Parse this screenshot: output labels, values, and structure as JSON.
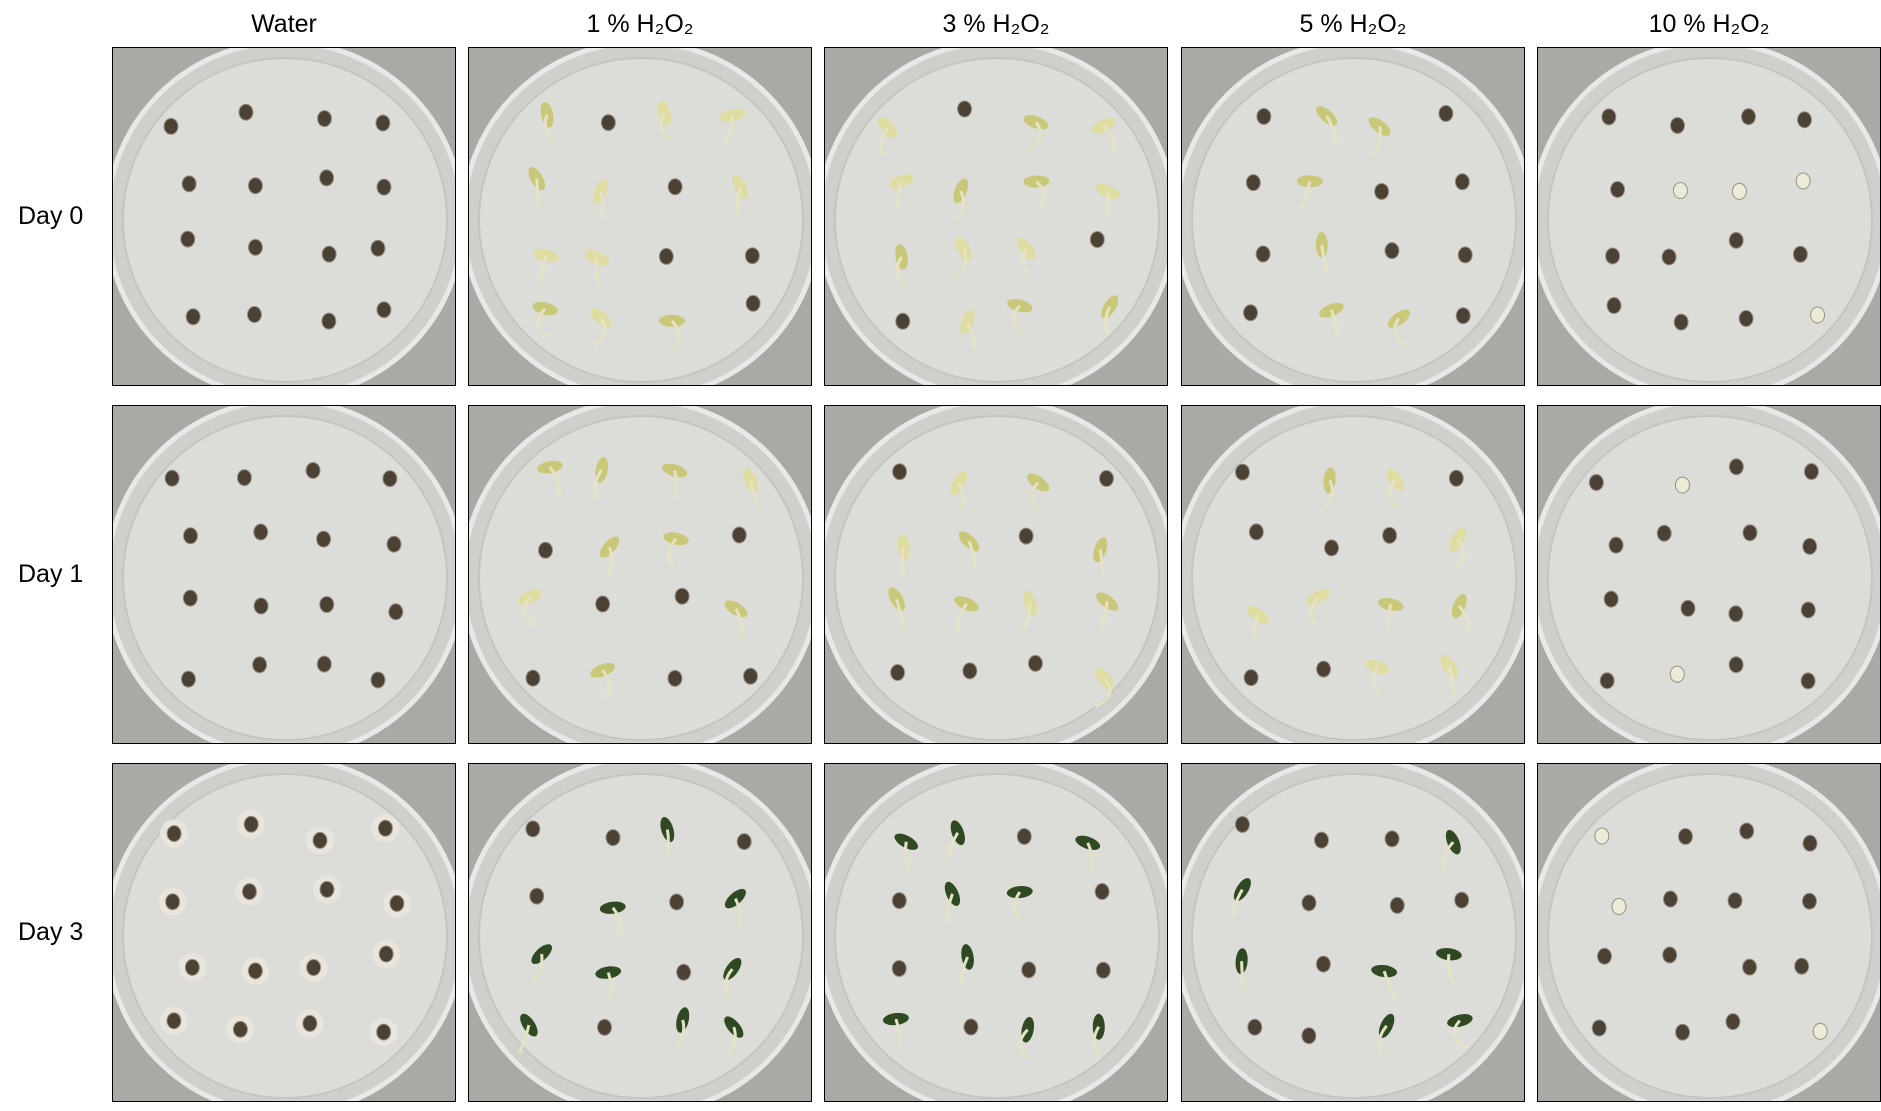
{
  "columns": [
    "Water",
    "1 % H₂O₂",
    "3 % H₂O₂",
    "5 % H₂O₂",
    "10 % H₂O₂"
  ],
  "rows": [
    "Day 0",
    "Day 1",
    "Day 3"
  ]
}
